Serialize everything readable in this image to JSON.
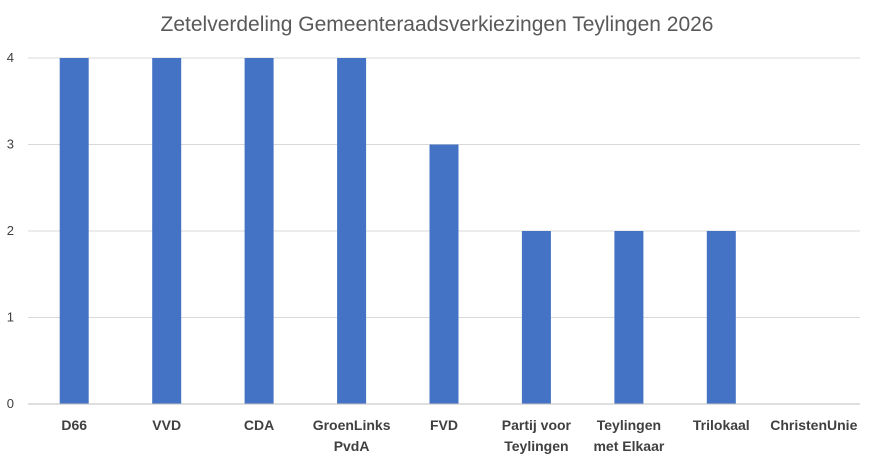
{
  "chart_data": {
    "type": "bar",
    "title": "Zetelverdeling Gemeenteraadsverkiezingen Teylingen 2026",
    "categories": [
      [
        "D66"
      ],
      [
        "VVD"
      ],
      [
        "CDA"
      ],
      [
        "GroenLinks",
        "PvdA"
      ],
      [
        "FVD"
      ],
      [
        "Partij voor",
        "Teylingen"
      ],
      [
        "Teylingen",
        "met Elkaar"
      ],
      [
        "Trilokaal"
      ],
      [
        "ChristenUnie"
      ]
    ],
    "values": [
      4,
      4,
      4,
      4,
      3,
      2,
      2,
      2,
      0
    ],
    "yticks": [
      "0",
      "1",
      "2",
      "3",
      "4"
    ],
    "ylim": [
      0,
      4
    ],
    "xlabel": "",
    "ylabel": "",
    "grid": true,
    "legend": "none",
    "bar_color": "#4472c4"
  }
}
